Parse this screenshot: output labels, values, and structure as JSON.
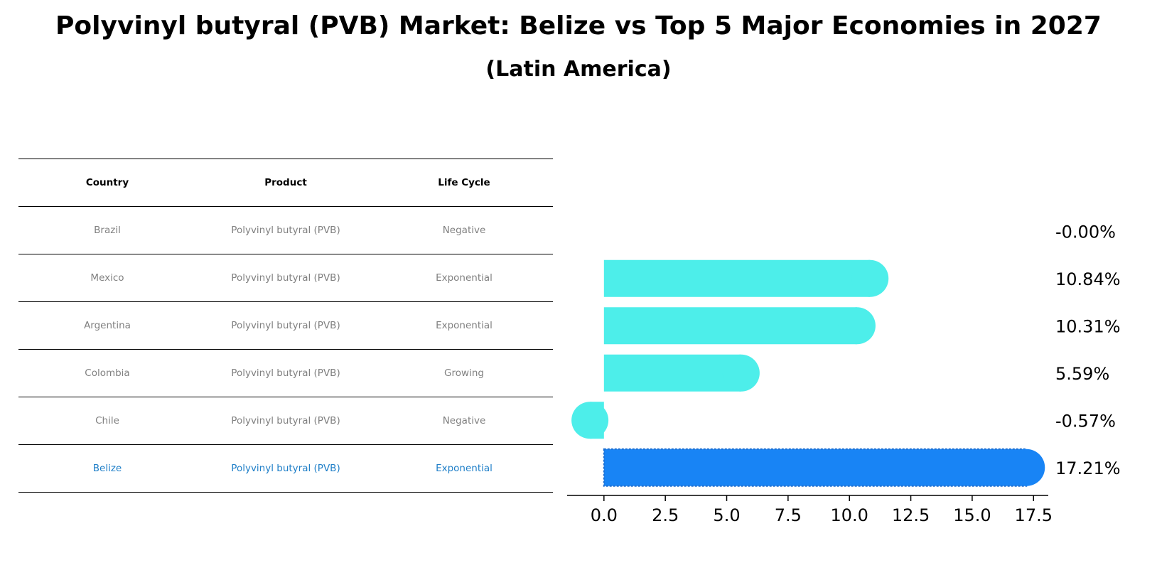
{
  "title": "Polyvinyl butyral (PVB) Market: Belize vs Top 5 Major Economies in 2027",
  "subtitle": "(Latin America)",
  "table": {
    "headers": [
      "Country",
      "Product",
      "Life Cycle"
    ],
    "rows": [
      {
        "country": "Brazil",
        "product": "Polyvinyl butyral (PVB)",
        "life_cycle": "Negative",
        "highlight": false
      },
      {
        "country": "Mexico",
        "product": "Polyvinyl butyral (PVB)",
        "life_cycle": "Exponential",
        "highlight": false
      },
      {
        "country": "Argentina",
        "product": "Polyvinyl butyral (PVB)",
        "life_cycle": "Exponential",
        "highlight": false
      },
      {
        "country": "Colombia",
        "product": "Polyvinyl butyral (PVB)",
        "life_cycle": "Growing",
        "highlight": false
      },
      {
        "country": "Chile",
        "product": "Polyvinyl butyral (PVB)",
        "life_cycle": "Negative",
        "highlight": false
      },
      {
        "country": "Belize",
        "product": "Polyvinyl butyral (PVB)",
        "life_cycle": "Exponential",
        "highlight": true
      }
    ]
  },
  "chart_data": {
    "type": "bar",
    "orientation": "horizontal",
    "categories": [
      "Brazil",
      "Mexico",
      "Argentina",
      "Colombia",
      "Chile",
      "Belize"
    ],
    "values": [
      -0.0,
      10.84,
      10.31,
      5.59,
      -0.57,
      17.21
    ],
    "value_labels": [
      "-0.00%",
      "10.84%",
      "10.31%",
      "5.59%",
      "-0.57%",
      "17.21%"
    ],
    "xlim": [
      -1.5,
      18.1
    ],
    "xticks": [
      0.0,
      2.5,
      5.0,
      7.5,
      10.0,
      12.5,
      15.0,
      17.5
    ],
    "xtick_labels": [
      "0.0",
      "2.5",
      "5.0",
      "7.5",
      "10.0",
      "12.5",
      "15.0",
      "17.5"
    ],
    "colors": {
      "default": "#4deeea",
      "highlight": "#1884f5"
    },
    "highlight_category": "Belize",
    "grid": false
  }
}
